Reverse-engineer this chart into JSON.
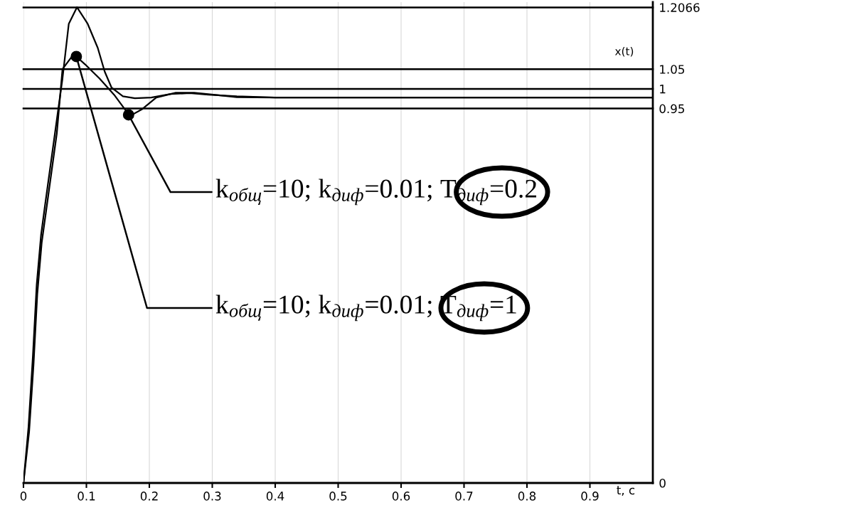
{
  "chart_data": {
    "type": "line",
    "xlabel": "t, с",
    "ylabel": "x(t)",
    "xlim": [
      0,
      1
    ],
    "ylim": [
      0,
      1.22
    ],
    "xticks": [
      0,
      0.1,
      0.2,
      0.3,
      0.4,
      0.5,
      0.6,
      0.7,
      0.8,
      0.9
    ],
    "yticks": [
      0,
      0.95,
      1,
      1.05,
      1.2066
    ],
    "grid": "x",
    "line_style": "solid",
    "marker": "none",
    "series": [
      {
        "color": "#000000",
        "x": [
          0,
          0.008,
          0.015,
          0.021,
          0.028,
          0.034,
          0.05,
          0.062,
          0.072,
          0.085,
          0.102,
          0.118,
          0.129,
          0.14,
          0.158,
          0.177,
          0.203,
          0.234,
          0.264,
          0.294,
          0.339,
          0.4,
          0.5,
          0.6,
          0.7,
          0.8,
          0.9,
          1.0
        ],
        "values": [
          0,
          0.142,
          0.323,
          0.503,
          0.63,
          0.702,
          0.887,
          1.026,
          1.165,
          1.207,
          1.165,
          1.104,
          1.044,
          1.003,
          0.981,
          0.976,
          0.978,
          0.987,
          0.989,
          0.985,
          0.981,
          0.978,
          0.978,
          0.978,
          0.978,
          0.978,
          0.978,
          0.978
        ]
      },
      {
        "color": "#000000",
        "x": [
          0,
          0.009,
          0.016,
          0.022,
          0.029,
          0.036,
          0.053,
          0.062,
          0.076,
          0.084,
          0.098,
          0.121,
          0.144,
          0.169,
          0.189,
          0.211,
          0.242,
          0.271,
          0.302,
          0.339,
          0.4,
          0.5,
          0.6,
          0.7,
          0.8,
          0.9,
          1.0
        ],
        "values": [
          0,
          0.13,
          0.3,
          0.48,
          0.61,
          0.69,
          0.887,
          1.05,
          1.08,
          1.082,
          1.062,
          1.026,
          0.985,
          0.931,
          0.949,
          0.978,
          0.99,
          0.99,
          0.985,
          0.979,
          0.978,
          0.978,
          0.978,
          0.978,
          0.978,
          0.978,
          0.978
        ]
      },
      {
        "type": "scatter",
        "color": "#000000",
        "marker": "circle",
        "x": [
          0.084,
          0.167
        ],
        "values": [
          1.082,
          0.934
        ]
      }
    ],
    "ref_lines": [
      {
        "axis": "y",
        "value": 1.2066,
        "color": "#000000"
      },
      {
        "axis": "y",
        "value": 1.05,
        "color": "#000000"
      },
      {
        "axis": "y",
        "value": 1,
        "color": "#000000"
      },
      {
        "axis": "y",
        "value": 0.95,
        "color": "#000000"
      }
    ],
    "annotations": [
      {
        "text": "k$_{общ}$=10; k$_{диф}$=0.01; T$_{диф}$=0.2",
        "x": 0.167,
        "y": 0.934
      },
      {
        "text": "k$_{общ}$=10; k$_{диф}$=0.01; T$_{диф}$=1",
        "x": 0.084,
        "y": 1.082
      }
    ]
  }
}
